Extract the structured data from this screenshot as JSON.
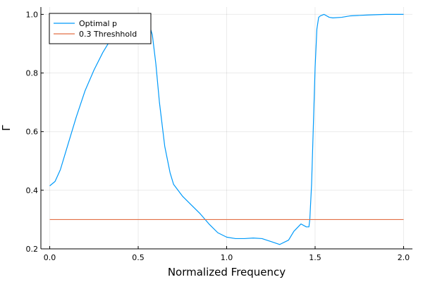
{
  "chart_data": {
    "type": "line",
    "xlabel": "Normalized Frequency",
    "ylabel": "Γ",
    "xlim": [
      -0.05,
      2.05
    ],
    "ylim": [
      0.2,
      1.025
    ],
    "x_ticks": [
      0.0,
      0.5,
      1.0,
      1.5,
      2.0
    ],
    "x_tick_labels": [
      "0.0",
      "0.5",
      "1.0",
      "1.5",
      "2.0"
    ],
    "y_ticks": [
      0.2,
      0.4,
      0.6,
      0.8,
      1.0
    ],
    "y_tick_labels": [
      "0.2",
      "0.4",
      "0.6",
      "0.8",
      "1.0"
    ],
    "grid": true,
    "legend_position": "top-left",
    "series": [
      {
        "name": "Optimal p",
        "color": "#009AFA",
        "x": [
          0.0,
          0.03,
          0.06,
          0.1,
          0.15,
          0.2,
          0.25,
          0.3,
          0.35,
          0.4,
          0.45,
          0.5,
          0.52,
          0.55,
          0.58,
          0.6,
          0.62,
          0.65,
          0.68,
          0.7,
          0.75,
          0.8,
          0.85,
          0.9,
          0.95,
          1.0,
          1.05,
          1.1,
          1.15,
          1.2,
          1.25,
          1.3,
          1.35,
          1.38,
          1.42,
          1.45,
          1.465,
          1.47,
          1.48,
          1.49,
          1.5,
          1.51,
          1.52,
          1.53,
          1.55,
          1.58,
          1.6,
          1.65,
          1.7,
          1.8,
          1.9,
          2.0
        ],
        "y": [
          0.415,
          0.43,
          0.47,
          0.55,
          0.65,
          0.74,
          0.81,
          0.87,
          0.92,
          0.965,
          0.99,
          0.995,
          1.0,
          0.99,
          0.93,
          0.83,
          0.7,
          0.55,
          0.46,
          0.42,
          0.38,
          0.35,
          0.32,
          0.285,
          0.255,
          0.24,
          0.235,
          0.235,
          0.237,
          0.235,
          0.225,
          0.215,
          0.23,
          0.26,
          0.285,
          0.275,
          0.275,
          0.3,
          0.42,
          0.62,
          0.82,
          0.95,
          0.99,
          0.995,
          1.0,
          0.99,
          0.988,
          0.99,
          0.995,
          0.998,
          1.0,
          1.0
        ]
      },
      {
        "name": "0.3 Threshhold",
        "color": "#E26F46",
        "x": [
          0.0,
          2.0
        ],
        "y": [
          0.3,
          0.3
        ]
      }
    ]
  }
}
